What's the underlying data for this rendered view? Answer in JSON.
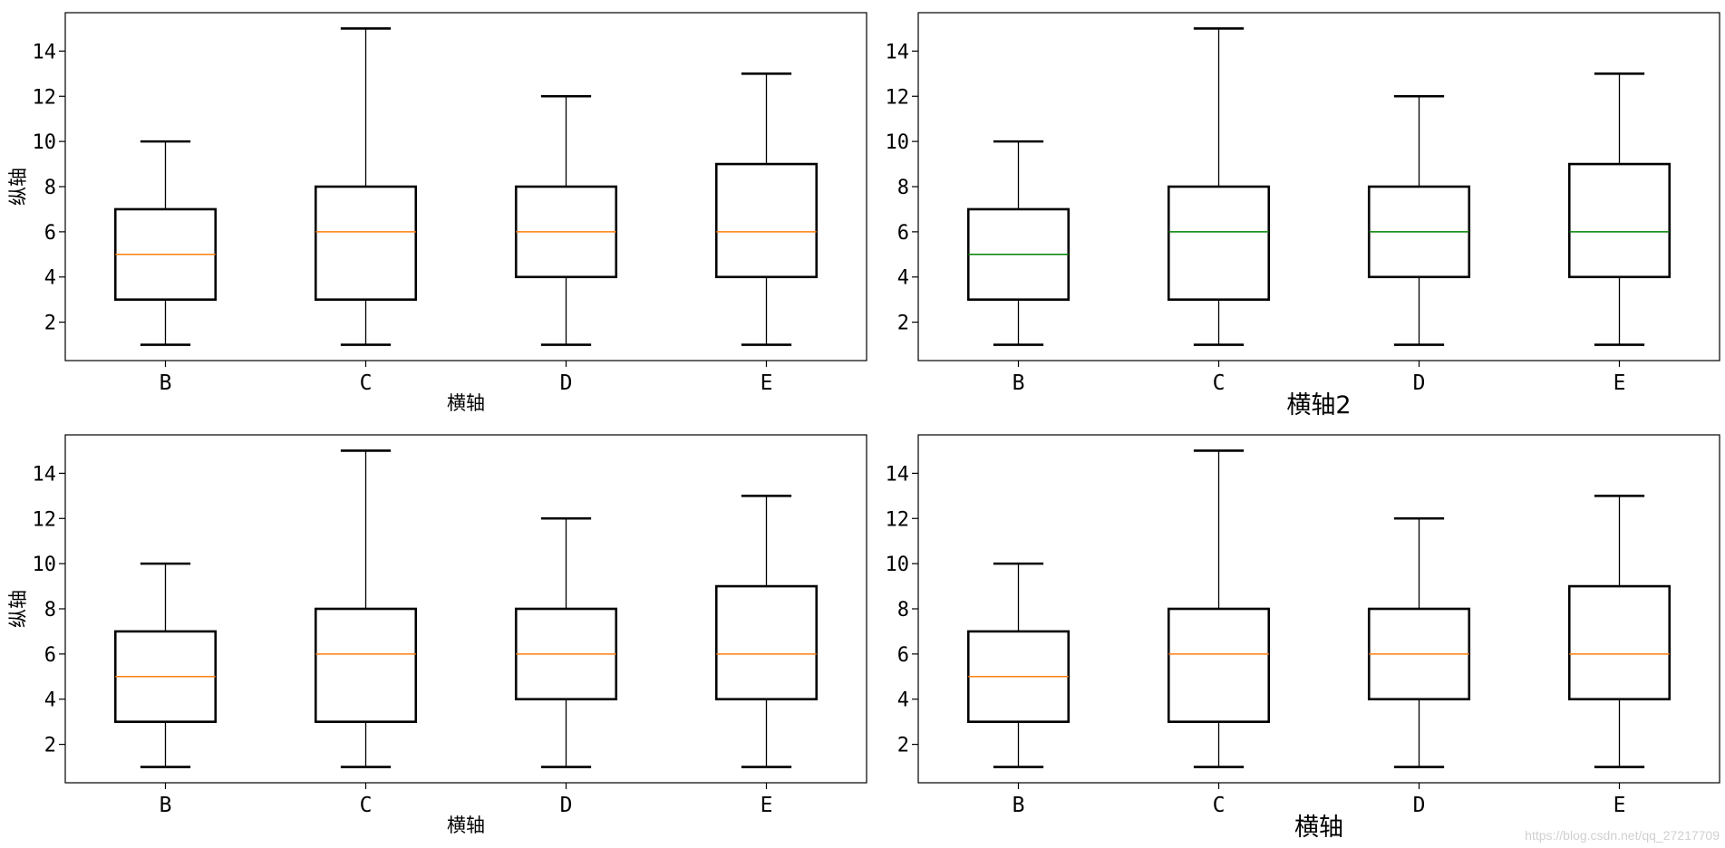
{
  "chart_data": [
    {
      "type": "box",
      "categories": [
        "B",
        "C",
        "D",
        "E"
      ],
      "boxes": [
        {
          "whisker_low": 1,
          "q1": 3,
          "median": 5,
          "q3": 7,
          "whisker_high": 10
        },
        {
          "whisker_low": 1,
          "q1": 3,
          "median": 6,
          "q3": 8,
          "whisker_high": 15
        },
        {
          "whisker_low": 1,
          "q1": 4,
          "median": 6,
          "q3": 8,
          "whisker_high": 12
        },
        {
          "whisker_low": 1,
          "q1": 4,
          "median": 6,
          "q3": 9,
          "whisker_high": 13
        }
      ],
      "median_color": "#ff7f0e",
      "xlabel": "横轴",
      "ylabel": "纵轴",
      "yticks": [
        2,
        4,
        6,
        8,
        10,
        12,
        14
      ],
      "ylim": [
        0.3,
        15.7
      ],
      "thick_whisker_caps": false
    },
    {
      "type": "box",
      "categories": [
        "B",
        "C",
        "D",
        "E"
      ],
      "boxes": [
        {
          "whisker_low": 1,
          "q1": 3,
          "median": 5,
          "q3": 7,
          "whisker_high": 10
        },
        {
          "whisker_low": 1,
          "q1": 3,
          "median": 6,
          "q3": 8,
          "whisker_high": 15
        },
        {
          "whisker_low": 1,
          "q1": 4,
          "median": 6,
          "q3": 8,
          "whisker_high": 12
        },
        {
          "whisker_low": 1,
          "q1": 4,
          "median": 6,
          "q3": 9,
          "whisker_high": 13
        }
      ],
      "median_color": "#008000",
      "xlabel": "横轴2",
      "ylabel": "",
      "yticks": [
        2,
        4,
        6,
        8,
        10,
        12,
        14
      ],
      "ylim": [
        0.3,
        15.7
      ],
      "thick_whisker_caps": false
    },
    {
      "type": "box",
      "categories": [
        "B",
        "C",
        "D",
        "E"
      ],
      "boxes": [
        {
          "whisker_low": 1,
          "q1": 3,
          "median": 5,
          "q3": 7,
          "whisker_high": 10
        },
        {
          "whisker_low": 1,
          "q1": 3,
          "median": 6,
          "q3": 8,
          "whisker_high": 15
        },
        {
          "whisker_low": 1,
          "q1": 4,
          "median": 6,
          "q3": 8,
          "whisker_high": 12
        },
        {
          "whisker_low": 1,
          "q1": 4,
          "median": 6,
          "q3": 9,
          "whisker_high": 13
        }
      ],
      "median_color": "#ff7f0e",
      "xlabel": "横轴",
      "ylabel": "纵轴",
      "yticks": [
        2,
        4,
        6,
        8,
        10,
        12,
        14
      ],
      "ylim": [
        0.3,
        15.7
      ],
      "thick_whisker_caps": false
    },
    {
      "type": "box",
      "categories": [
        "B",
        "C",
        "D",
        "E"
      ],
      "boxes": [
        {
          "whisker_low": 1,
          "q1": 3,
          "median": 5,
          "q3": 7,
          "whisker_high": 10
        },
        {
          "whisker_low": 1,
          "q1": 3,
          "median": 6,
          "q3": 8,
          "whisker_high": 15
        },
        {
          "whisker_low": 1,
          "q1": 4,
          "median": 6,
          "q3": 8,
          "whisker_high": 12
        },
        {
          "whisker_low": 1,
          "q1": 4,
          "median": 6,
          "q3": 9,
          "whisker_high": 13
        }
      ],
      "median_color": "#ff7f0e",
      "xlabel": "横轴",
      "ylabel": "",
      "yticks": [
        2,
        4,
        6,
        8,
        10,
        12,
        14
      ],
      "ylim": [
        0.3,
        15.7
      ],
      "thick_whisker_caps": false
    }
  ],
  "watermark": "https://blog.csdn.net/qq_27217709"
}
